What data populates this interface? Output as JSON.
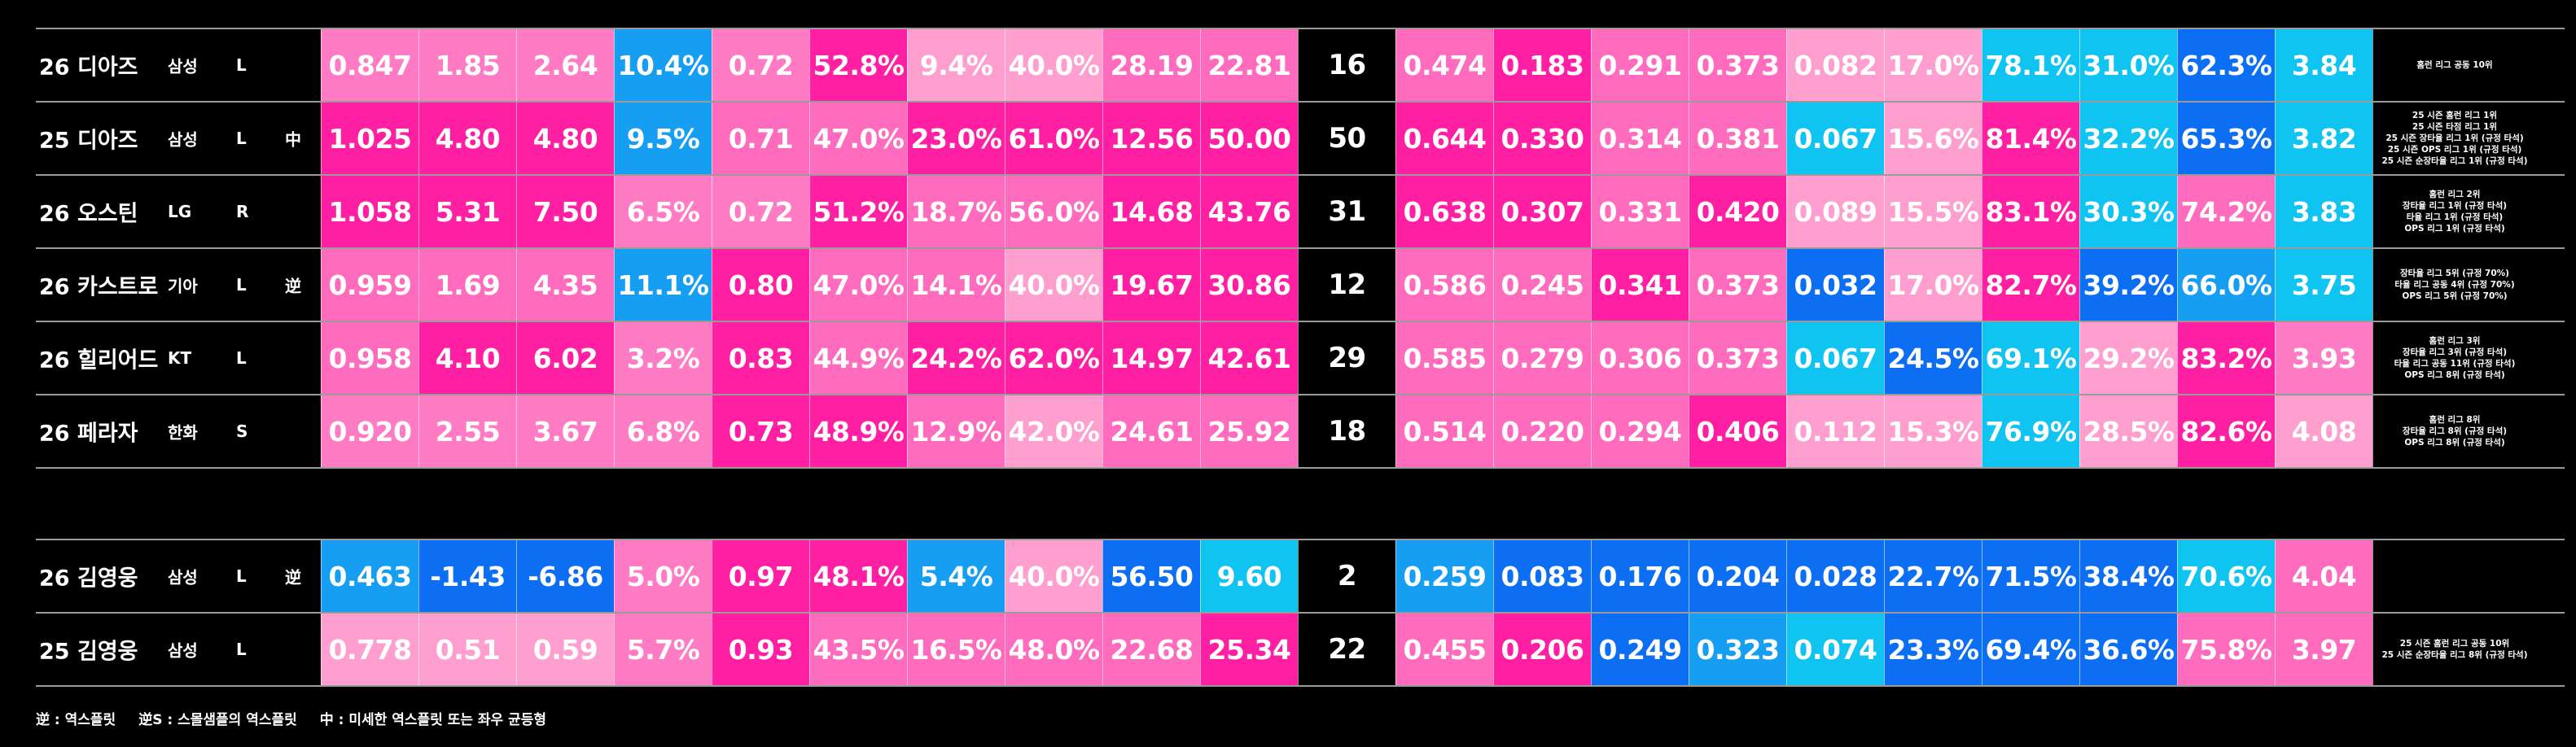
{
  "sections": [
    {
      "rows": [
        {
          "name": "26 디아즈",
          "team": "삼성",
          "hand": "L",
          "left": [
            "0.847",
            "1.85",
            "2.64",
            "10.4%",
            "0.72",
            "52.8%",
            "9.4%",
            "40.0%",
            "28.19",
            "22.81"
          ],
          "left_colors": [
            "#ff7cc4",
            "#ff7cc4",
            "#ff7cc4",
            "#169ef2",
            "#ff7cc4",
            "#ff1fa3",
            "#ff9fd0",
            "#ff9fd0",
            "#ff6bbd",
            "#ff6bbd"
          ],
          "count": "16",
          "right": [
            "0.474",
            "0.183",
            "0.291",
            "0.373",
            "0.082",
            "17.0%",
            "78.1%",
            "31.0%",
            "62.3%",
            "3.84"
          ],
          "right_colors": [
            "#ff6bbd",
            "#ff1fa3",
            "#ff6bbd",
            "#ff6bbd",
            "#ff9fd0",
            "#ff9fd0",
            "#10c4f2",
            "#10c4f2",
            "#0c6ef2",
            "#10c4f2"
          ],
          "notes": [
            "홈런 리그 공동 10위"
          ]
        },
        {
          "name": "25 디아즈",
          "team": "삼성",
          "hand": "L",
          "flag": "中",
          "left": [
            "1.025",
            "4.80",
            "4.80",
            "9.5%",
            "0.71",
            "47.0%",
            "23.0%",
            "61.0%",
            "12.56",
            "50.00"
          ],
          "left_colors": [
            "#ff1fa3",
            "#ff1fa3",
            "#ff1fa3",
            "#169ef2",
            "#ff6bbd",
            "#ff6bbd",
            "#ff1fa3",
            "#ff1fa3",
            "#ff1fa3",
            "#ff1fa3"
          ],
          "count": "50",
          "right": [
            "0.644",
            "0.330",
            "0.314",
            "0.381",
            "0.067",
            "15.6%",
            "81.4%",
            "32.2%",
            "65.3%",
            "3.82"
          ],
          "right_colors": [
            "#ff1fa3",
            "#ff1fa3",
            "#ff6bbd",
            "#ff6bbd",
            "#10c4f2",
            "#ff9fd0",
            "#ff1fa3",
            "#10c4f2",
            "#0c6ef2",
            "#10c4f2"
          ],
          "notes": [
            "25 시즌 홈런 리그 1위",
            "25 시즌 타점 리그 1위",
            "25 시즌 장타율 리그 1위 (규정 타석)",
            "25 시즌 OPS 리그 1위 (규정 타석)",
            "25 시즌 순장타율 리그 1위 (규정 타석)"
          ]
        },
        {
          "name": "26 오스틴",
          "team": "LG",
          "hand": "R",
          "left": [
            "1.058",
            "5.31",
            "7.50",
            "6.5%",
            "0.72",
            "51.2%",
            "18.7%",
            "56.0%",
            "14.68",
            "43.76"
          ],
          "left_colors": [
            "#ff1fa3",
            "#ff1fa3",
            "#ff1fa3",
            "#ff7cc4",
            "#ff7cc4",
            "#ff1fa3",
            "#ff6bbd",
            "#ff6bbd",
            "#ff1fa3",
            "#ff1fa3"
          ],
          "count": "31",
          "right": [
            "0.638",
            "0.307",
            "0.331",
            "0.420",
            "0.089",
            "15.5%",
            "83.1%",
            "30.3%",
            "74.2%",
            "3.83"
          ],
          "right_colors": [
            "#ff1fa3",
            "#ff1fa3",
            "#ff6bbd",
            "#ff1fa3",
            "#ff9fd0",
            "#ff9fd0",
            "#ff1fa3",
            "#10c4f2",
            "#ff6bbd",
            "#10c4f2"
          ],
          "notes": [
            "홈런 리그 2위",
            "장타율 리그 1위 (규정 타석)",
            "타율 리그 1위 (규정 타석)",
            "OPS 리그 1위 (규정 타석)"
          ]
        },
        {
          "name": "26 카스트로",
          "team": "기아",
          "hand": "L",
          "flag": "逆",
          "left": [
            "0.959",
            "1.69",
            "4.35",
            "11.1%",
            "0.80",
            "47.0%",
            "14.1%",
            "40.0%",
            "19.67",
            "30.86"
          ],
          "left_colors": [
            "#ff6bbd",
            "#ff6bbd",
            "#ff6bbd",
            "#169ef2",
            "#ff1fa3",
            "#ff6bbd",
            "#ff6bbd",
            "#ff9fd0",
            "#ff1fa3",
            "#ff1fa3"
          ],
          "count": "12",
          "right": [
            "0.586",
            "0.245",
            "0.341",
            "0.373",
            "0.032",
            "17.0%",
            "82.7%",
            "39.2%",
            "66.0%",
            "3.75"
          ],
          "right_colors": [
            "#ff6bbd",
            "#ff6bbd",
            "#ff1fa3",
            "#ff6bbd",
            "#0c6ef2",
            "#ff9fd0",
            "#ff1fa3",
            "#0c6ef2",
            "#169ef2",
            "#10c4f2"
          ],
          "notes": [
            "장타율 리그 5위 (규정 70%)",
            "타율 리그 공동 4위 (규정 70%)",
            "OPS 리그 5위 (규정 70%)"
          ]
        },
        {
          "name": "26 힐리어드",
          "team": "KT",
          "hand": "L",
          "left": [
            "0.958",
            "4.10",
            "6.02",
            "3.2%",
            "0.83",
            "44.9%",
            "24.2%",
            "62.0%",
            "14.97",
            "42.61"
          ],
          "left_colors": [
            "#ff6bbd",
            "#ff1fa3",
            "#ff1fa3",
            "#ff7cc4",
            "#ff1fa3",
            "#ff6bbd",
            "#ff1fa3",
            "#ff1fa3",
            "#ff1fa3",
            "#ff1fa3"
          ],
          "count": "29",
          "right": [
            "0.585",
            "0.279",
            "0.306",
            "0.373",
            "0.067",
            "24.5%",
            "69.1%",
            "29.2%",
            "83.2%",
            "3.93"
          ],
          "right_colors": [
            "#ff6bbd",
            "#ff6bbd",
            "#ff6bbd",
            "#ff6bbd",
            "#10c4f2",
            "#0c6ef2",
            "#10c4f2",
            "#ff9fd0",
            "#ff1fa3",
            "#ff7cc4"
          ],
          "notes": [
            "홈런 리그 3위",
            "장타율 리그 3위 (규정 타석)",
            "타율 리그 공동 11위 (규정 타석)",
            "OPS 리그 8위 (규정 타석)"
          ]
        },
        {
          "name": "26 페라자",
          "team": "한화",
          "hand": "S",
          "left": [
            "0.920",
            "2.55",
            "3.67",
            "6.8%",
            "0.73",
            "48.9%",
            "12.9%",
            "42.0%",
            "24.61",
            "25.92"
          ],
          "left_colors": [
            "#ff7cc4",
            "#ff7cc4",
            "#ff7cc4",
            "#ff7cc4",
            "#ff1fa3",
            "#ff1fa3",
            "#ff6bbd",
            "#ff9fd0",
            "#ff6bbd",
            "#ff6bbd"
          ],
          "count": "18",
          "right": [
            "0.514",
            "0.220",
            "0.294",
            "0.406",
            "0.112",
            "15.3%",
            "76.9%",
            "28.5%",
            "82.6%",
            "4.08"
          ],
          "right_colors": [
            "#ff6bbd",
            "#ff6bbd",
            "#ff6bbd",
            "#ff1fa3",
            "#ff9fd0",
            "#ff9fd0",
            "#10c4f2",
            "#ff9fd0",
            "#ff1fa3",
            "#ff9fd0"
          ],
          "notes": [
            "홈런 리그 8위",
            "장타율 리그 8위 (규정 타석)",
            "OPS 리그 8위 (규정 타석)"
          ]
        }
      ]
    },
    {
      "rows": [
        {
          "name": "26 김영웅",
          "team": "삼성",
          "hand": "L",
          "flag": "逆",
          "left": [
            "0.463",
            "-1.43",
            "-6.86",
            "5.0%",
            "0.97",
            "48.1%",
            "5.4%",
            "40.0%",
            "56.50",
            "9.60"
          ],
          "left_colors": [
            "#169ef2",
            "#0c6ef2",
            "#0c6ef2",
            "#ff7cc4",
            "#ff1fa3",
            "#ff1fa3",
            "#169ef2",
            "#ff9fd0",
            "#0c6ef2",
            "#10c4f2"
          ],
          "count": "2",
          "right": [
            "0.259",
            "0.083",
            "0.176",
            "0.204",
            "0.028",
            "22.7%",
            "71.5%",
            "38.4%",
            "70.6%",
            "4.04"
          ],
          "right_colors": [
            "#169ef2",
            "#0c6ef2",
            "#0c6ef2",
            "#0c6ef2",
            "#0c6ef2",
            "#0c6ef2",
            "#0c6ef2",
            "#0c6ef2",
            "#10c4f2",
            "#ff6bbd"
          ]
        },
        {
          "name": "25 김영웅",
          "team": "삼성",
          "hand": "L",
          "left": [
            "0.778",
            "0.51",
            "0.59",
            "5.7%",
            "0.93",
            "43.5%",
            "16.5%",
            "48.0%",
            "22.68",
            "25.34"
          ],
          "left_colors": [
            "#ff9fd0",
            "#ff9fd0",
            "#ff9fd0",
            "#ff7cc4",
            "#ff1fa3",
            "#ff6bbd",
            "#ff6bbd",
            "#ff6bbd",
            "#ff6bbd",
            "#ff1fa3"
          ],
          "count": "22",
          "right": [
            "0.455",
            "0.206",
            "0.249",
            "0.323",
            "0.074",
            "23.3%",
            "69.4%",
            "36.6%",
            "75.8%",
            "3.97"
          ],
          "right_colors": [
            "#ff6bbd",
            "#ff1fa3",
            "#0c6ef2",
            "#169ef2",
            "#10c4f2",
            "#0c6ef2",
            "#0c6ef2",
            "#0c6ef2",
            "#ff6bbd",
            "#ff6bbd"
          ],
          "notes": [
            "25 시즌 홈런 리그 공동 10위",
            "25 시즌 순장타율 리그 8위 (규정 타석)"
          ]
        }
      ]
    }
  ],
  "footer": [
    "逆 : 역스플릿",
    "逆S : 스몰샘플의 역스플릿",
    "中 : 미세한 역스플릿 또는 좌우 균등형"
  ]
}
